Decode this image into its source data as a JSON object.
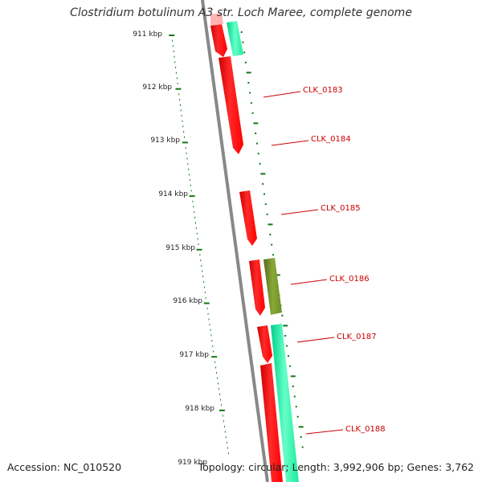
{
  "title": "Clostridium botulinum A3 str. Loch Maree, complete genome",
  "accession": "Accession: NC_010520",
  "summary": "Topology: circular; Length: 3,992,906 bp; Genes: 3,762",
  "scale_labels": [
    "911 kbp",
    "912 kbp",
    "913 kbp",
    "914 kbp",
    "915 kbp",
    "916 kbp",
    "917 kbp",
    "918 kbp",
    "919 kbp"
  ],
  "gene_labels": [
    "CLK_0183",
    "CLK_0184",
    "CLK_0185",
    "CLK_0186",
    "CLK_0187",
    "CLK_0188"
  ],
  "colors": {
    "backbone": "#888888",
    "cds_forward": "#ff0000",
    "cds_reverse": "#ff0000",
    "gene_feature": "#1de9a0",
    "gene_feature_alt": "#6b8e23",
    "scale_ticks": "#117711",
    "label_text": "#cc0000"
  }
}
